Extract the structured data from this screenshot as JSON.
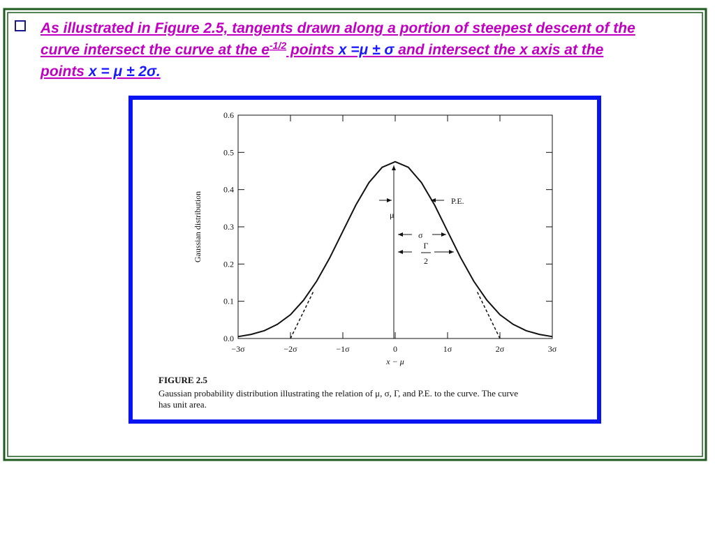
{
  "slide": {
    "bullet": {
      "line1": "As illustrated in Figure 2.5, tangents drawn along a portion of steepest descent of the",
      "line2a": "curve intersect the curve at the e",
      "superscript": "-1/2",
      "line2b": " points ",
      "highlight1": "x =μ ± σ",
      "line2c": " and intersect the x axis at the",
      "line3a": "points ",
      "highlight2": "x = μ ± 2σ."
    }
  },
  "chart_data": {
    "type": "line",
    "xlabel": "x − μ",
    "ylabel": "Gaussian distribution",
    "x": [
      -3,
      -2.75,
      -2.5,
      -2.25,
      -2,
      -1.75,
      -1.5,
      -1.25,
      -1,
      -0.75,
      -0.5,
      -0.25,
      0,
      0.25,
      0.5,
      0.75,
      1,
      1.25,
      1.5,
      1.75,
      2,
      2.25,
      2.5,
      2.75,
      3
    ],
    "values": [
      0.005,
      0.011,
      0.021,
      0.038,
      0.064,
      0.103,
      0.154,
      0.217,
      0.288,
      0.359,
      0.419,
      0.46,
      0.475,
      0.46,
      0.419,
      0.359,
      0.288,
      0.217,
      0.154,
      0.103,
      0.064,
      0.038,
      0.021,
      0.011,
      0.005
    ],
    "color": "#111111",
    "tangents": [
      {
        "x": [
          -2,
          -1.55
        ],
        "values": [
          0,
          0.13
        ]
      },
      {
        "x": [
          2,
          1.55
        ],
        "values": [
          0,
          0.13
        ]
      }
    ],
    "xlim": [
      -3,
      3
    ],
    "ylim": [
      0,
      0.6
    ],
    "xticks": [
      {
        "value": -3,
        "label": "−3σ"
      },
      {
        "value": -2,
        "label": "−2σ"
      },
      {
        "value": -1,
        "label": "−1σ"
      },
      0,
      {
        "value": 1,
        "label": "1σ"
      },
      {
        "value": 2,
        "label": "2σ"
      },
      {
        "value": 3,
        "label": "3σ"
      }
    ],
    "yticks": [
      {
        "value": 0,
        "label": "0.0"
      },
      0.1,
      0.2,
      0.3,
      0.4,
      0.5,
      0.6
    ],
    "annotations": {
      "pe": "P.E.",
      "mu": "μ",
      "sigma": "σ",
      "gamma": "Γ",
      "two": "2"
    },
    "caption_title": "FIGURE 2.5",
    "caption_line1": "Gaussian probability distribution illustrating the relation of μ, σ, Γ, and P.E. to the curve. The curve",
    "caption_line2": "has unit area."
  }
}
